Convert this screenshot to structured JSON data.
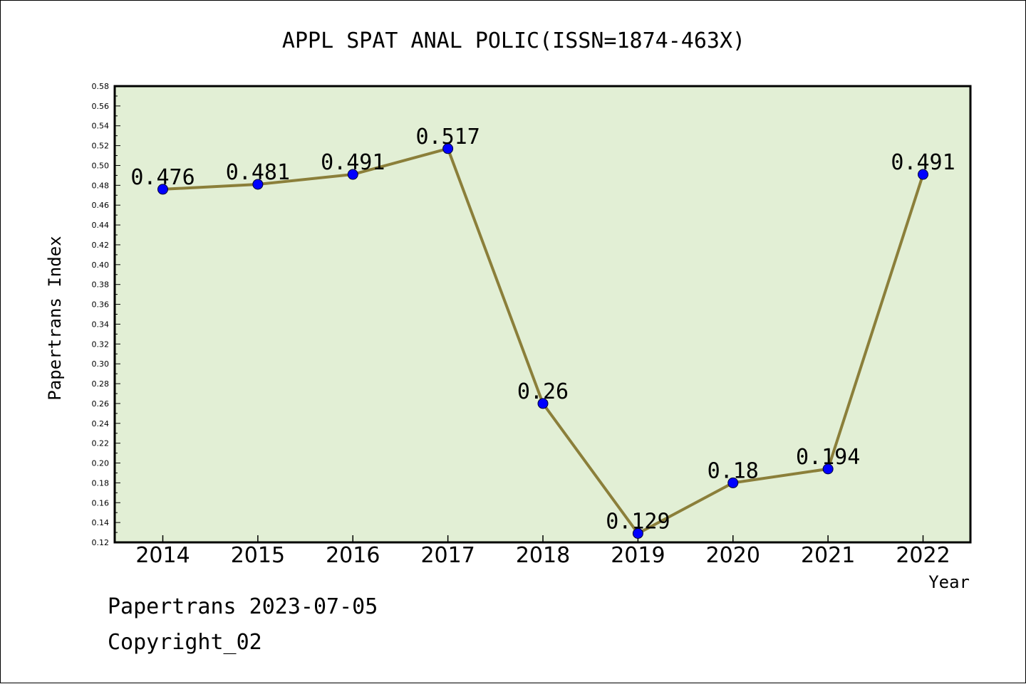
{
  "colors": {
    "plot_background": "#e2efd5",
    "line": "#8b7f3a",
    "marker": "#0000ff"
  },
  "chart_data": {
    "type": "line",
    "title": "APPL SPAT ANAL POLIC(ISSN=1874-463X)",
    "xlabel": "Year",
    "ylabel": "Papertrans Index",
    "categories": [
      "2014",
      "2015",
      "2016",
      "2017",
      "2018",
      "2019",
      "2020",
      "2021",
      "2022"
    ],
    "series": [
      {
        "values": [
          0.476,
          0.481,
          0.491,
          0.517,
          0.26,
          0.129,
          0.18,
          0.194,
          0.491
        ],
        "labels": [
          "0.476",
          "0.481",
          "0.491",
          "0.517",
          "0.26",
          "0.129",
          "0.18",
          "0.194",
          "0.491"
        ]
      }
    ],
    "ylim": [
      0.12,
      0.58
    ],
    "yticks": [
      "0.12",
      "0.14",
      "0.16",
      "0.18",
      "0.20",
      "0.22",
      "0.24",
      "0.26",
      "0.28",
      "0.30",
      "0.32",
      "0.34",
      "0.36",
      "0.38",
      "0.40",
      "0.42",
      "0.44",
      "0.46",
      "0.48",
      "0.50",
      "0.52",
      "0.54",
      "0.56",
      "0.58"
    ],
    "grid": false
  },
  "footer": {
    "line1": "Papertrans 2023-07-05",
    "line2": "Copyright_02"
  }
}
